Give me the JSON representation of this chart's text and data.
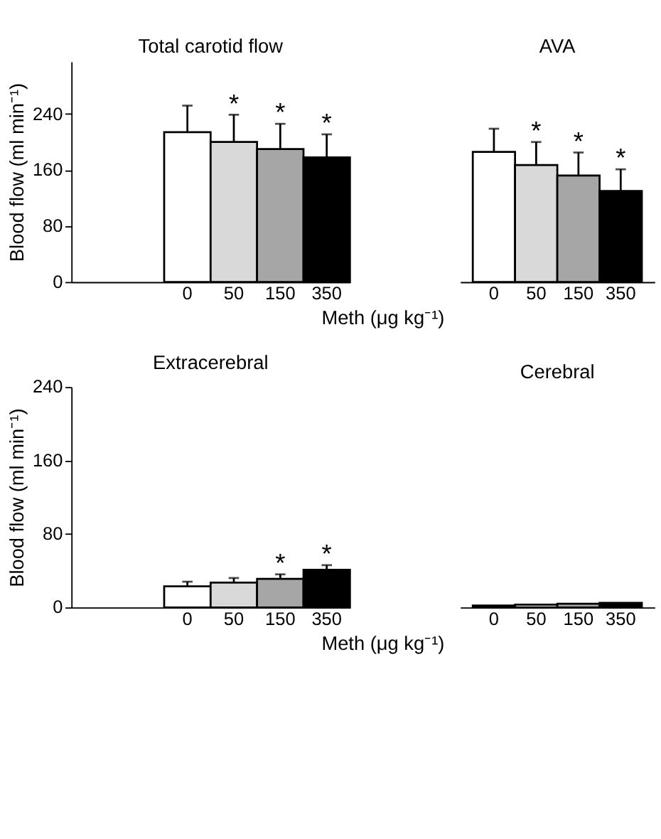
{
  "chart_data": [
    {
      "type": "bar",
      "ylabel": "Blood flow (ml min⁻¹)",
      "xlabel": "Meth (μg kg⁻¹)",
      "annotations": [
        "Total carotid flow",
        "AVA"
      ],
      "categories": [
        "0",
        "50",
        "150",
        "350",
        "0",
        "50",
        "150",
        "350"
      ],
      "values": [
        214,
        200,
        190,
        178,
        186,
        167,
        152,
        130
      ],
      "errors": [
        [
          214,
          252
        ],
        [
          200,
          239
        ],
        [
          190,
          226
        ],
        [
          178,
          211
        ],
        [
          186,
          219
        ],
        [
          167,
          200
        ],
        [
          152,
          185
        ],
        [
          130,
          161
        ]
      ],
      "value_labels": [
        null,
        "*",
        "*",
        "*",
        null,
        "*",
        "*",
        "*"
      ],
      "colors": [
        "#ffffff",
        "#d9d9d9",
        "#a6a6a6",
        "#000000",
        "#ffffff",
        "#d9d9d9",
        "#a6a6a6",
        "#000000"
      ],
      "ylim": [
        0,
        315
      ],
      "yticks": [
        0,
        80,
        160,
        240
      ]
    },
    {
      "type": "bar",
      "ylabel": "Blood flow (ml min⁻¹)",
      "xlabel": "Meth (μg kg⁻¹)",
      "annotations": [
        "Extracerebral",
        "Cerebral"
      ],
      "categories": [
        "0",
        "50",
        "150",
        "350",
        "0",
        "50",
        "150",
        "350"
      ],
      "values": [
        23,
        27,
        31,
        41,
        2,
        3,
        4,
        5
      ],
      "errors": [
        [
          23,
          28
        ],
        [
          27,
          32
        ],
        [
          31,
          36
        ],
        [
          41,
          46
        ],
        null,
        null,
        null,
        null
      ],
      "value_labels": [
        null,
        null,
        "*",
        "*",
        null,
        null,
        null,
        null
      ],
      "colors": [
        "#ffffff",
        "#d9d9d9",
        "#a6a6a6",
        "#000000",
        "#ffffff",
        "#d9d9d9",
        "#a6a6a6",
        "#000000"
      ],
      "ylim": [
        0,
        240
      ],
      "yticks": [
        0,
        80,
        160,
        240
      ]
    }
  ]
}
